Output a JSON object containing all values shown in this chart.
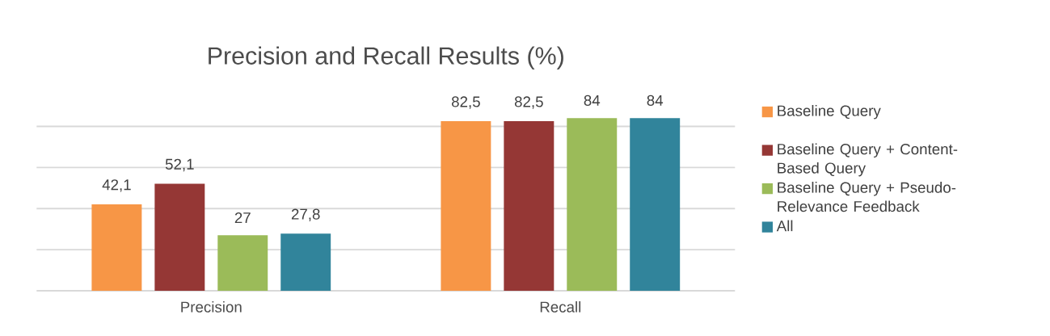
{
  "chart_data": {
    "type": "bar",
    "title": "Precision and Recall Results (%)",
    "categories": [
      "Precision",
      "Recall"
    ],
    "series": [
      {
        "name": "Baseline Query",
        "color": "#f79646",
        "values": [
          42.1,
          82.5
        ],
        "value_labels": [
          "42,1",
          "82,5"
        ]
      },
      {
        "name": "Baseline Query + Content-Based Query",
        "color": "#953735",
        "values": [
          52.1,
          82.5
        ],
        "value_labels": [
          "52,1",
          "82,5"
        ]
      },
      {
        "name": "Baseline Query + Pseudo-Relevance Feedback",
        "color": "#9bbb59",
        "values": [
          27,
          84
        ],
        "value_labels": [
          "27",
          "84"
        ]
      },
      {
        "name": "All",
        "color": "#31849b",
        "values": [
          27.8,
          84
        ],
        "value_labels": [
          "27,8",
          "84"
        ]
      }
    ],
    "tick_labels": "x",
    "grid": "y",
    "legend": "right"
  }
}
